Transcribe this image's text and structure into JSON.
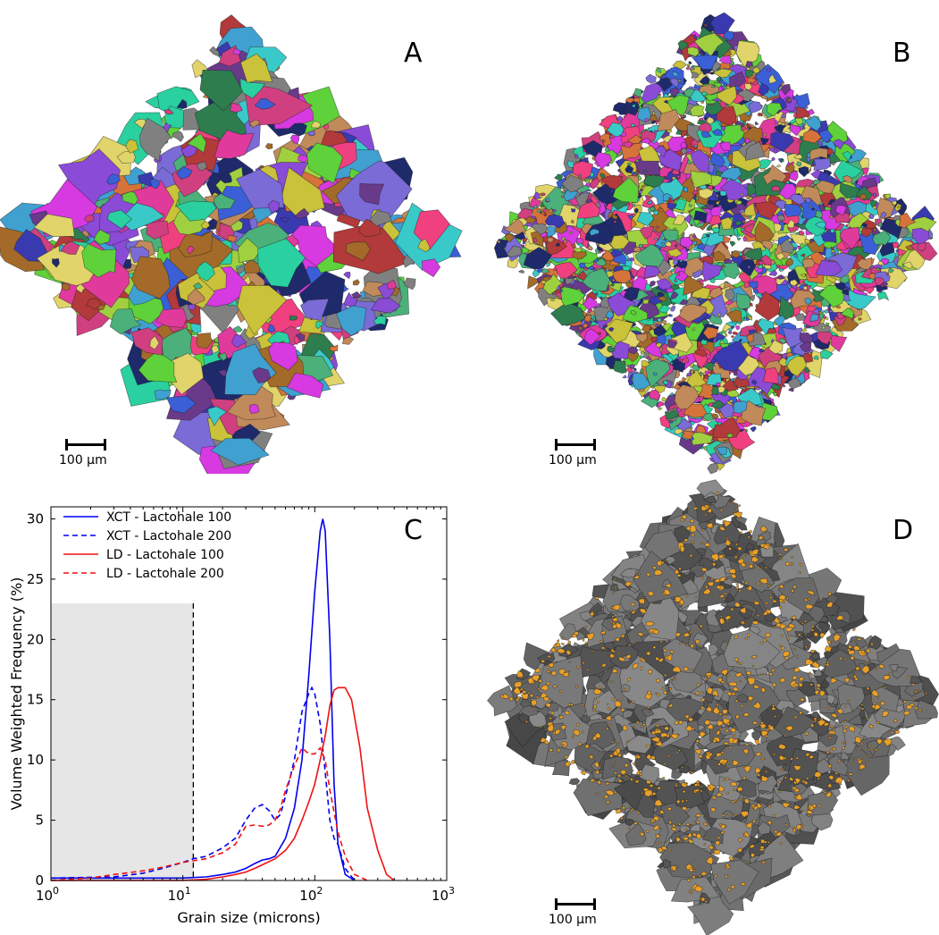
{
  "panels": {
    "a": {
      "letter": "A",
      "scale_label": "100 µm"
    },
    "b": {
      "letter": "B",
      "scale_label": "100 µm"
    },
    "c": {
      "letter": "C"
    },
    "d": {
      "letter": "D",
      "scale_label": "100 µm"
    }
  },
  "colors": {
    "xct": "#0000ee",
    "ld": "#ee1111",
    "shade": "#e6e6e6",
    "grains_gray": "#5a5a5a",
    "grains_orange": "#e8a02a"
  },
  "chart_data": {
    "type": "line",
    "xlabel": "Grain size (microns)",
    "ylabel": "Volume Weighted Frequency (%)",
    "xscale": "log",
    "xlim": [
      1,
      1000
    ],
    "ylim": [
      0,
      31
    ],
    "xticks": [
      {
        "value": 1,
        "base": "10",
        "exp": "0"
      },
      {
        "value": 10,
        "base": "10",
        "exp": "1"
      },
      {
        "value": 100,
        "base": "10",
        "exp": "2"
      },
      {
        "value": 1000,
        "base": "10",
        "exp": "3"
      }
    ],
    "yticks": [
      0,
      5,
      10,
      15,
      20,
      25,
      30
    ],
    "shaded_region": {
      "x": [
        1,
        12
      ],
      "y": [
        0,
        23
      ]
    },
    "cutoff_line_x": 12,
    "legend_position": "top-left",
    "series": [
      {
        "name": "XCT - Lactohale 100",
        "color": "#0000ee",
        "dash": false,
        "x": [
          1,
          5,
          10,
          15,
          20,
          25,
          30,
          35,
          40,
          45,
          50,
          60,
          70,
          80,
          90,
          100,
          110,
          115,
          120,
          130,
          140,
          150,
          170,
          200
        ],
        "y": [
          0.2,
          0.2,
          0.2,
          0.3,
          0.5,
          0.7,
          1.0,
          1.4,
          1.7,
          1.8,
          2.0,
          3.5,
          6.0,
          10.0,
          17.0,
          24.0,
          29.0,
          30.0,
          29.0,
          20.0,
          8.0,
          3.0,
          0.5,
          0
        ]
      },
      {
        "name": "XCT - Lactohale 200",
        "color": "#0000ee",
        "dash": true,
        "x": [
          1,
          3,
          5,
          7,
          10,
          12,
          15,
          20,
          25,
          30,
          35,
          40,
          45,
          50,
          55,
          60,
          70,
          80,
          90,
          95,
          100,
          110,
          120,
          130,
          140,
          150,
          170,
          200
        ],
        "y": [
          0.2,
          0.3,
          0.6,
          1.0,
          1.5,
          1.8,
          2.0,
          2.7,
          3.5,
          5.0,
          6.0,
          6.3,
          5.8,
          5.0,
          5.5,
          7.0,
          10.0,
          14.0,
          15.5,
          16.0,
          15.5,
          13.0,
          9.0,
          5.0,
          3.5,
          3.0,
          1.0,
          0
        ]
      },
      {
        "name": "LD - Lactohale 100",
        "color": "#ee1111",
        "dash": false,
        "x": [
          1,
          5,
          10,
          15,
          20,
          25,
          30,
          35,
          40,
          50,
          60,
          70,
          80,
          90,
          100,
          110,
          120,
          130,
          140,
          150,
          170,
          190,
          220,
          250,
          300,
          350,
          400
        ],
        "y": [
          0,
          0,
          0,
          0.1,
          0.3,
          0.5,
          0.7,
          1.0,
          1.3,
          1.8,
          2.5,
          3.5,
          5.0,
          6.5,
          8.0,
          10.0,
          12.0,
          14.5,
          15.8,
          16.0,
          16.0,
          15.0,
          11.0,
          6.0,
          2.5,
          0.5,
          0
        ]
      },
      {
        "name": "LD - Lactohale 200",
        "color": "#ee1111",
        "dash": true,
        "x": [
          1,
          2,
          3,
          5,
          7,
          10,
          15,
          20,
          25,
          30,
          35,
          40,
          45,
          50,
          55,
          60,
          70,
          80,
          90,
          100,
          110,
          120,
          130,
          150,
          170,
          200,
          250
        ],
        "y": [
          0,
          0.2,
          0.5,
          0.8,
          1.1,
          1.5,
          1.8,
          2.3,
          3.0,
          4.5,
          4.6,
          4.5,
          4.6,
          5.0,
          6.0,
          7.5,
          9.5,
          11.0,
          10.5,
          10.5,
          11.0,
          10.0,
          7.5,
          4.0,
          2.0,
          0.5,
          0
        ]
      }
    ]
  }
}
